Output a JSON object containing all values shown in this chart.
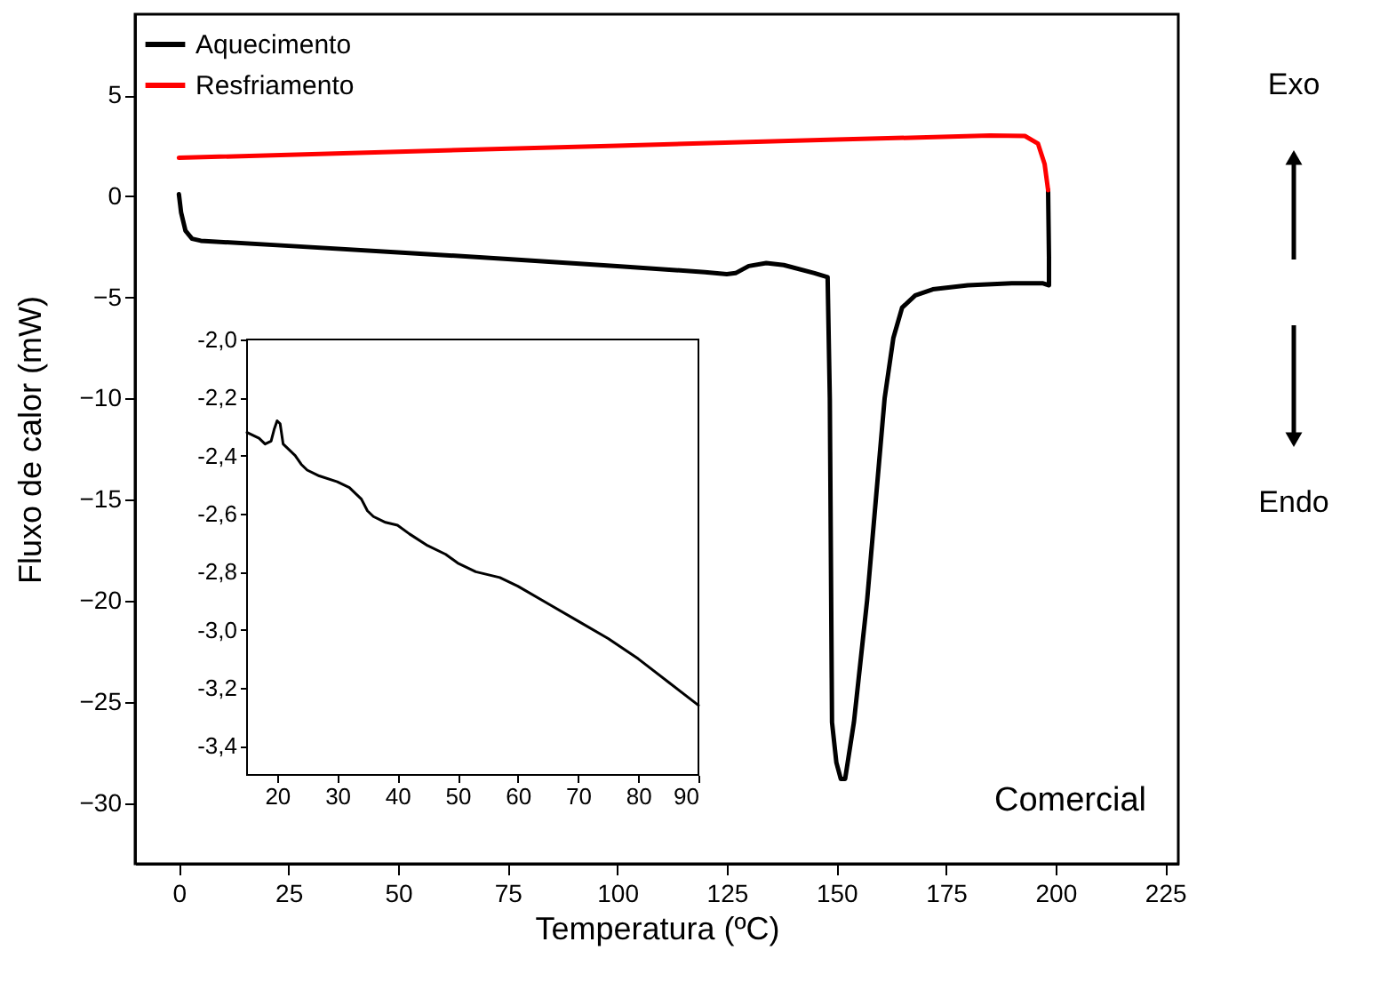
{
  "chart_data": [
    {
      "type": "line",
      "xlabel": "Temperatura (ºC)",
      "ylabel": "Fluxo de calor (mW)",
      "xlim": [
        -10,
        228
      ],
      "ylim": [
        -33,
        9
      ],
      "xticks": [
        0,
        25,
        50,
        75,
        100,
        125,
        150,
        175,
        200,
        225
      ],
      "yticks": [
        5,
        0,
        -5,
        -10,
        -15,
        -20,
        -25,
        -30
      ],
      "legend": "top left",
      "annotations": [
        "Comercial",
        "Exo",
        "Endo"
      ],
      "series": [
        {
          "name": "Aquecimento",
          "color": "#000000",
          "x": [
            0,
            0.5,
            1.5,
            3,
            5,
            25,
            50,
            75,
            100,
            120,
            125,
            127,
            130,
            134,
            138,
            145,
            148,
            148.5,
            149,
            150,
            151,
            152,
            154,
            157,
            159,
            161,
            163,
            165,
            168,
            172,
            180,
            190,
            197,
            198.5,
            198.5,
            198.3
          ],
          "values": [
            0.1,
            -0.8,
            -1.7,
            -2.1,
            -2.2,
            -2.45,
            -2.77,
            -3.1,
            -3.45,
            -3.75,
            -3.85,
            -3.8,
            -3.45,
            -3.3,
            -3.4,
            -3.8,
            -4.0,
            -10,
            -26,
            -28,
            -28.8,
            -28.8,
            -26,
            -20,
            -15,
            -10,
            -7,
            -5.5,
            -4.9,
            -4.6,
            -4.4,
            -4.3,
            -4.3,
            -4.4,
            -3,
            0.3
          ]
        },
        {
          "name": "Resfriamento",
          "color": "#ff0000",
          "x": [
            198.3,
            197.5,
            196,
            193,
            185,
            150,
            100,
            50,
            0
          ],
          "values": [
            0.3,
            1.6,
            2.6,
            2.98,
            3.0,
            2.8,
            2.5,
            2.2,
            1.9
          ]
        }
      ]
    },
    {
      "type": "line",
      "xlim": [
        15,
        90
      ],
      "ylim": [
        -3.5,
        -2.0
      ],
      "xticks": [
        20,
        30,
        40,
        50,
        60,
        70,
        80,
        90
      ],
      "yticks": [
        {
          "value": -2.0,
          "label": "-2,0"
        },
        {
          "value": -2.2,
          "label": "-2,2"
        },
        {
          "value": -2.4,
          "label": "-2,4"
        },
        {
          "value": -2.6,
          "label": "-2,6"
        },
        {
          "value": -2.8,
          "label": "-2,8"
        },
        {
          "value": -3.0,
          "label": "-3,0"
        },
        {
          "value": -3.2,
          "label": "-3,2"
        },
        {
          "value": -3.4,
          "label": "-3,4"
        }
      ],
      "series": [
        {
          "color": "#000000",
          "x": [
            15,
            17,
            18,
            19,
            19.5,
            20,
            20.5,
            21,
            22,
            23,
            24,
            25,
            27,
            30,
            32,
            34,
            35,
            36,
            38,
            40,
            42,
            45,
            48,
            50,
            53,
            57,
            60,
            65,
            70,
            75,
            80,
            85,
            90
          ],
          "values": [
            -2.32,
            -2.34,
            -2.36,
            -2.35,
            -2.31,
            -2.28,
            -2.29,
            -2.36,
            -2.38,
            -2.4,
            -2.43,
            -2.45,
            -2.47,
            -2.49,
            -2.51,
            -2.55,
            -2.59,
            -2.61,
            -2.63,
            -2.64,
            -2.67,
            -2.71,
            -2.74,
            -2.77,
            -2.8,
            -2.82,
            -2.85,
            -2.91,
            -2.97,
            -3.03,
            -3.1,
            -3.18,
            -3.26
          ]
        }
      ]
    }
  ]
}
